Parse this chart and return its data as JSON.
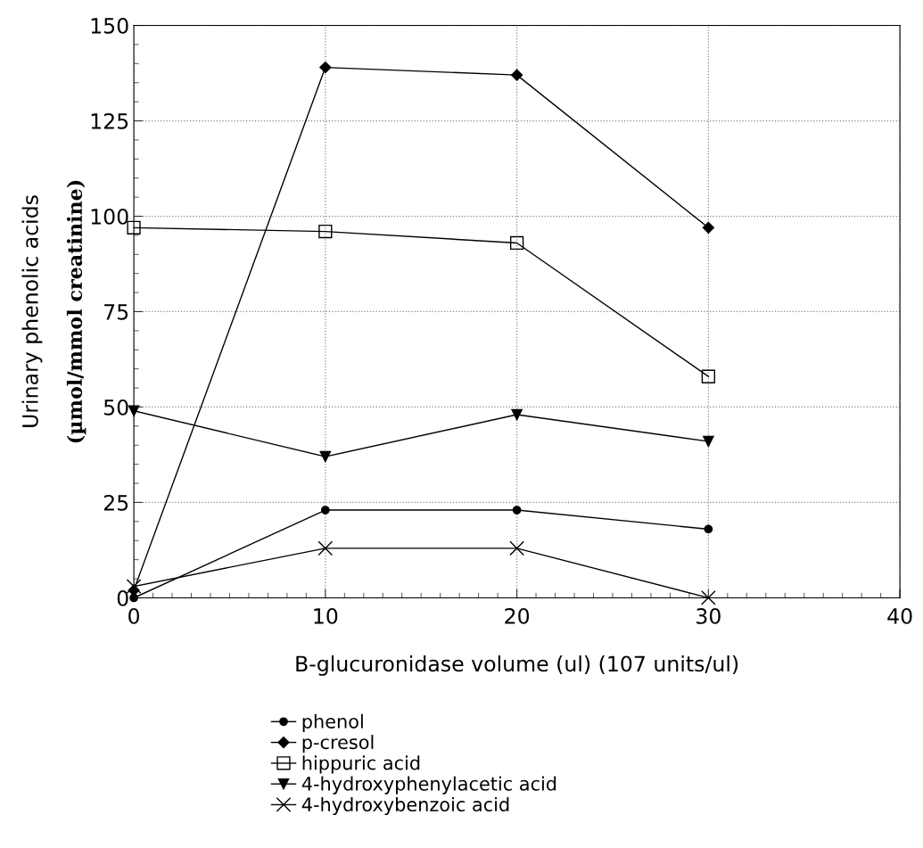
{
  "chart_data": {
    "type": "line",
    "xlabel": "B-glucuronidase volume (ul) (107 units/ul)",
    "ylabel": "Urinary phenolic acids\n(µmol/mmol creatinine)",
    "x": [
      0,
      10,
      20,
      30
    ],
    "xlim": [
      0,
      40
    ],
    "xticks": [
      0,
      10,
      20,
      30,
      40
    ],
    "ylim": [
      0,
      150
    ],
    "yticks": [
      0,
      25,
      50,
      75,
      100,
      125,
      150
    ],
    "grid": true,
    "legend": "bottom",
    "line_style": "solid",
    "series": [
      {
        "name": "phenol",
        "color": "#000000",
        "marker": "circle",
        "values": [
          0,
          23,
          23,
          18
        ]
      },
      {
        "name": "p-cresol",
        "color": "#000000",
        "marker": "diamond",
        "values": [
          2,
          139,
          137,
          97
        ]
      },
      {
        "name": "hippuric acid",
        "color": "#000000",
        "marker": "square",
        "values": [
          97,
          96,
          93,
          58
        ]
      },
      {
        "name": "4-hydroxyphenylacetic acid",
        "color": "#000000",
        "marker": "triangle",
        "values": [
          49,
          37,
          48,
          41
        ]
      },
      {
        "name": "4-hydroxybenzoic acid",
        "color": "#000000",
        "marker": "cross",
        "values": [
          3,
          13,
          13,
          0
        ]
      }
    ]
  }
}
